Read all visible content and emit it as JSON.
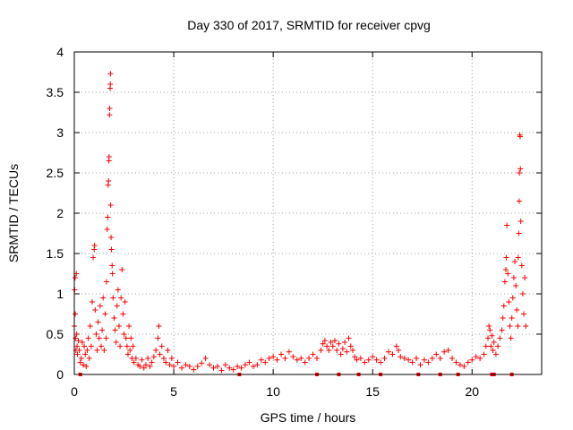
{
  "chart_data": {
    "type": "scatter",
    "title": "Day 330 of 2017, SRMTID for receiver cpvg",
    "xlabel": "GPS time / hours",
    "ylabel": "SRMTID / TECUs",
    "xlim": [
      0,
      23.5
    ],
    "ylim": [
      0,
      4
    ],
    "xticks": [
      0,
      5,
      10,
      15,
      20
    ],
    "xtick_labels": [
      "0",
      "5",
      "10",
      "15",
      "20"
    ],
    "yticks": [
      0,
      0.5,
      1,
      1.5,
      2,
      2.5,
      3,
      3.5,
      4
    ],
    "ytick_labels": [
      "0",
      "0.5",
      "1",
      "1.5",
      "2",
      "2.5",
      "3",
      "3.5",
      "4"
    ],
    "grid": true,
    "marker": "plus",
    "color": "#ff0000",
    "series": [
      {
        "name": "SRMTID",
        "points": [
          [
            0.0,
            0.6
          ],
          [
            0.02,
            1.05
          ],
          [
            0.04,
            1.2
          ],
          [
            0.05,
            0.75
          ],
          [
            0.06,
            0.45
          ],
          [
            0.08,
            0.3
          ],
          [
            0.1,
            1.25
          ],
          [
            0.12,
            0.5
          ],
          [
            0.14,
            0.35
          ],
          [
            0.16,
            0.25
          ],
          [
            0.2,
            0.42
          ],
          [
            0.25,
            0.3
          ],
          [
            0.3,
            0.15
          ],
          [
            0.35,
            0.2
          ],
          [
            0.4,
            0.4
          ],
          [
            0.45,
            0.12
          ],
          [
            0.5,
            0.35
          ],
          [
            0.55,
            0.25
          ],
          [
            0.6,
            0.1
          ],
          [
            0.65,
            0.3
          ],
          [
            0.7,
            0.45
          ],
          [
            0.75,
            0.2
          ],
          [
            0.8,
            0.6
          ],
          [
            0.85,
            0.35
          ],
          [
            0.9,
            0.9
          ],
          [
            0.95,
            1.45
          ],
          [
            1.0,
            1.55
          ],
          [
            1.02,
            1.6
          ],
          [
            1.05,
            0.8
          ],
          [
            1.1,
            0.5
          ],
          [
            1.15,
            0.3
          ],
          [
            1.2,
            0.65
          ],
          [
            1.25,
            0.45
          ],
          [
            1.3,
            0.85
          ],
          [
            1.35,
            0.35
          ],
          [
            1.4,
            0.55
          ],
          [
            1.45,
            0.95
          ],
          [
            1.5,
            0.3
          ],
          [
            1.55,
            0.75
          ],
          [
            1.6,
            0.45
          ],
          [
            1.62,
            1.15
          ],
          [
            1.65,
            1.8
          ],
          [
            1.68,
            1.95
          ],
          [
            1.7,
            2.35
          ],
          [
            1.72,
            2.4
          ],
          [
            1.74,
            2.65
          ],
          [
            1.75,
            2.7
          ],
          [
            1.77,
            3.22
          ],
          [
            1.78,
            3.3
          ],
          [
            1.8,
            3.55
          ],
          [
            1.81,
            3.6
          ],
          [
            1.82,
            3.73
          ],
          [
            1.83,
            2.1
          ],
          [
            1.85,
            1.7
          ],
          [
            1.87,
            1.55
          ],
          [
            1.9,
            1.35
          ],
          [
            1.92,
            1.25
          ],
          [
            1.95,
            0.95
          ],
          [
            2.0,
            0.7
          ],
          [
            2.05,
            0.55
          ],
          [
            2.1,
            0.4
          ],
          [
            2.15,
            0.85
          ],
          [
            2.2,
            1.05
          ],
          [
            2.25,
            0.6
          ],
          [
            2.3,
            0.35
          ],
          [
            2.35,
            0.95
          ],
          [
            2.4,
            1.3
          ],
          [
            2.45,
            0.75
          ],
          [
            2.5,
            0.5
          ],
          [
            2.55,
            0.9
          ],
          [
            2.6,
            0.45
          ],
          [
            2.65,
            0.35
          ],
          [
            2.7,
            0.25
          ],
          [
            2.75,
            0.6
          ],
          [
            2.8,
            0.3
          ],
          [
            2.85,
            0.45
          ],
          [
            2.9,
            0.2
          ],
          [
            2.95,
            0.35
          ],
          [
            3.0,
            0.15
          ],
          [
            3.1,
            0.2
          ],
          [
            3.2,
            0.12
          ],
          [
            3.3,
            0.1
          ],
          [
            3.4,
            0.18
          ],
          [
            3.5,
            0.08
          ],
          [
            3.6,
            0.12
          ],
          [
            3.7,
            0.2
          ],
          [
            3.8,
            0.1
          ],
          [
            3.9,
            0.15
          ],
          [
            4.0,
            0.22
          ],
          [
            4.1,
            0.3
          ],
          [
            4.2,
            0.45
          ],
          [
            4.25,
            0.6
          ],
          [
            4.3,
            0.25
          ],
          [
            4.4,
            0.35
          ],
          [
            4.5,
            0.2
          ],
          [
            4.6,
            0.15
          ],
          [
            4.7,
            0.3
          ],
          [
            4.8,
            0.12
          ],
          [
            4.9,
            0.2
          ],
          [
            5.0,
            0.1
          ],
          [
            5.2,
            0.15
          ],
          [
            5.4,
            0.08
          ],
          [
            5.6,
            0.12
          ],
          [
            5.8,
            0.1
          ],
          [
            6.0,
            0.06
          ],
          [
            6.2,
            0.1
          ],
          [
            6.4,
            0.14
          ],
          [
            6.6,
            0.2
          ],
          [
            6.8,
            0.12
          ],
          [
            7.0,
            0.08
          ],
          [
            7.2,
            0.1
          ],
          [
            7.4,
            0.05
          ],
          [
            7.6,
            0.12
          ],
          [
            7.8,
            0.08
          ],
          [
            8.0,
            0.06
          ],
          [
            8.2,
            0.1
          ],
          [
            8.4,
            0.08
          ],
          [
            8.6,
            0.12
          ],
          [
            8.8,
            0.15
          ],
          [
            9.0,
            0.1
          ],
          [
            9.2,
            0.12
          ],
          [
            9.4,
            0.18
          ],
          [
            9.6,
            0.15
          ],
          [
            9.8,
            0.2
          ],
          [
            10.0,
            0.22
          ],
          [
            10.2,
            0.18
          ],
          [
            10.4,
            0.25
          ],
          [
            10.6,
            0.2
          ],
          [
            10.8,
            0.28
          ],
          [
            11.0,
            0.22
          ],
          [
            11.2,
            0.18
          ],
          [
            11.4,
            0.2
          ],
          [
            11.6,
            0.15
          ],
          [
            11.8,
            0.2
          ],
          [
            12.0,
            0.25
          ],
          [
            12.2,
            0.2
          ],
          [
            12.4,
            0.3
          ],
          [
            12.5,
            0.38
          ],
          [
            12.6,
            0.42
          ],
          [
            12.7,
            0.35
          ],
          [
            12.8,
            0.3
          ],
          [
            12.9,
            0.4
          ],
          [
            13.0,
            0.35
          ],
          [
            13.1,
            0.42
          ],
          [
            13.2,
            0.3
          ],
          [
            13.3,
            0.38
          ],
          [
            13.4,
            0.25
          ],
          [
            13.5,
            0.32
          ],
          [
            13.6,
            0.4
          ],
          [
            13.7,
            0.28
          ],
          [
            13.8,
            0.45
          ],
          [
            13.9,
            0.35
          ],
          [
            14.0,
            0.3
          ],
          [
            14.1,
            0.22
          ],
          [
            14.2,
            0.18
          ],
          [
            14.4,
            0.2
          ],
          [
            14.6,
            0.15
          ],
          [
            14.8,
            0.18
          ],
          [
            15.0,
            0.22
          ],
          [
            15.2,
            0.18
          ],
          [
            15.4,
            0.15
          ],
          [
            15.6,
            0.2
          ],
          [
            15.8,
            0.28
          ],
          [
            16.0,
            0.25
          ],
          [
            16.2,
            0.35
          ],
          [
            16.3,
            0.3
          ],
          [
            16.4,
            0.22
          ],
          [
            16.6,
            0.2
          ],
          [
            16.8,
            0.18
          ],
          [
            17.0,
            0.15
          ],
          [
            17.2,
            0.2
          ],
          [
            17.4,
            0.12
          ],
          [
            17.6,
            0.18
          ],
          [
            17.8,
            0.15
          ],
          [
            18.0,
            0.2
          ],
          [
            18.2,
            0.25
          ],
          [
            18.4,
            0.2
          ],
          [
            18.6,
            0.28
          ],
          [
            18.8,
            0.3
          ],
          [
            19.0,
            0.2
          ],
          [
            19.2,
            0.15
          ],
          [
            19.4,
            0.12
          ],
          [
            19.6,
            0.1
          ],
          [
            19.8,
            0.15
          ],
          [
            20.0,
            0.18
          ],
          [
            20.2,
            0.22
          ],
          [
            20.4,
            0.2
          ],
          [
            20.6,
            0.25
          ],
          [
            20.7,
            0.35
          ],
          [
            20.8,
            0.45
          ],
          [
            20.85,
            0.6
          ],
          [
            20.9,
            0.55
          ],
          [
            20.95,
            0.35
          ],
          [
            21.0,
            0.48
          ],
          [
            21.05,
            0.3
          ],
          [
            21.1,
            0.4
          ],
          [
            21.2,
            0.25
          ],
          [
            21.3,
            0.35
          ],
          [
            21.4,
            0.45
          ],
          [
            21.5,
            0.55
          ],
          [
            21.55,
            0.7
          ],
          [
            21.6,
            0.85
          ],
          [
            21.65,
            1.15
          ],
          [
            21.7,
            1.3
          ],
          [
            21.72,
            1.45
          ],
          [
            21.75,
            1.85
          ],
          [
            21.8,
            1.25
          ],
          [
            21.85,
            0.9
          ],
          [
            21.9,
            0.6
          ],
          [
            21.95,
            0.45
          ],
          [
            22.0,
            0.7
          ],
          [
            22.05,
            0.95
          ],
          [
            22.1,
            1.2
          ],
          [
            22.15,
            1.4
          ],
          [
            22.2,
            1.1
          ],
          [
            22.25,
            0.8
          ],
          [
            22.3,
            0.6
          ],
          [
            22.32,
            1.45
          ],
          [
            22.35,
            1.75
          ],
          [
            22.37,
            2.15
          ],
          [
            22.38,
            2.5
          ],
          [
            22.4,
            2.97
          ],
          [
            22.42,
            2.95
          ],
          [
            22.43,
            2.55
          ],
          [
            22.45,
            1.9
          ],
          [
            22.5,
            1.35
          ],
          [
            22.55,
            1.0
          ],
          [
            22.6,
            0.75
          ],
          [
            22.65,
            1.2
          ],
          [
            22.7,
            0.6
          ]
        ]
      }
    ],
    "zero_marks_x": [
      0.3,
      8.3,
      12.2,
      13.3,
      14.3,
      15.4,
      17.3,
      18.4,
      19.3,
      21.0,
      21.1,
      22.0
    ]
  }
}
